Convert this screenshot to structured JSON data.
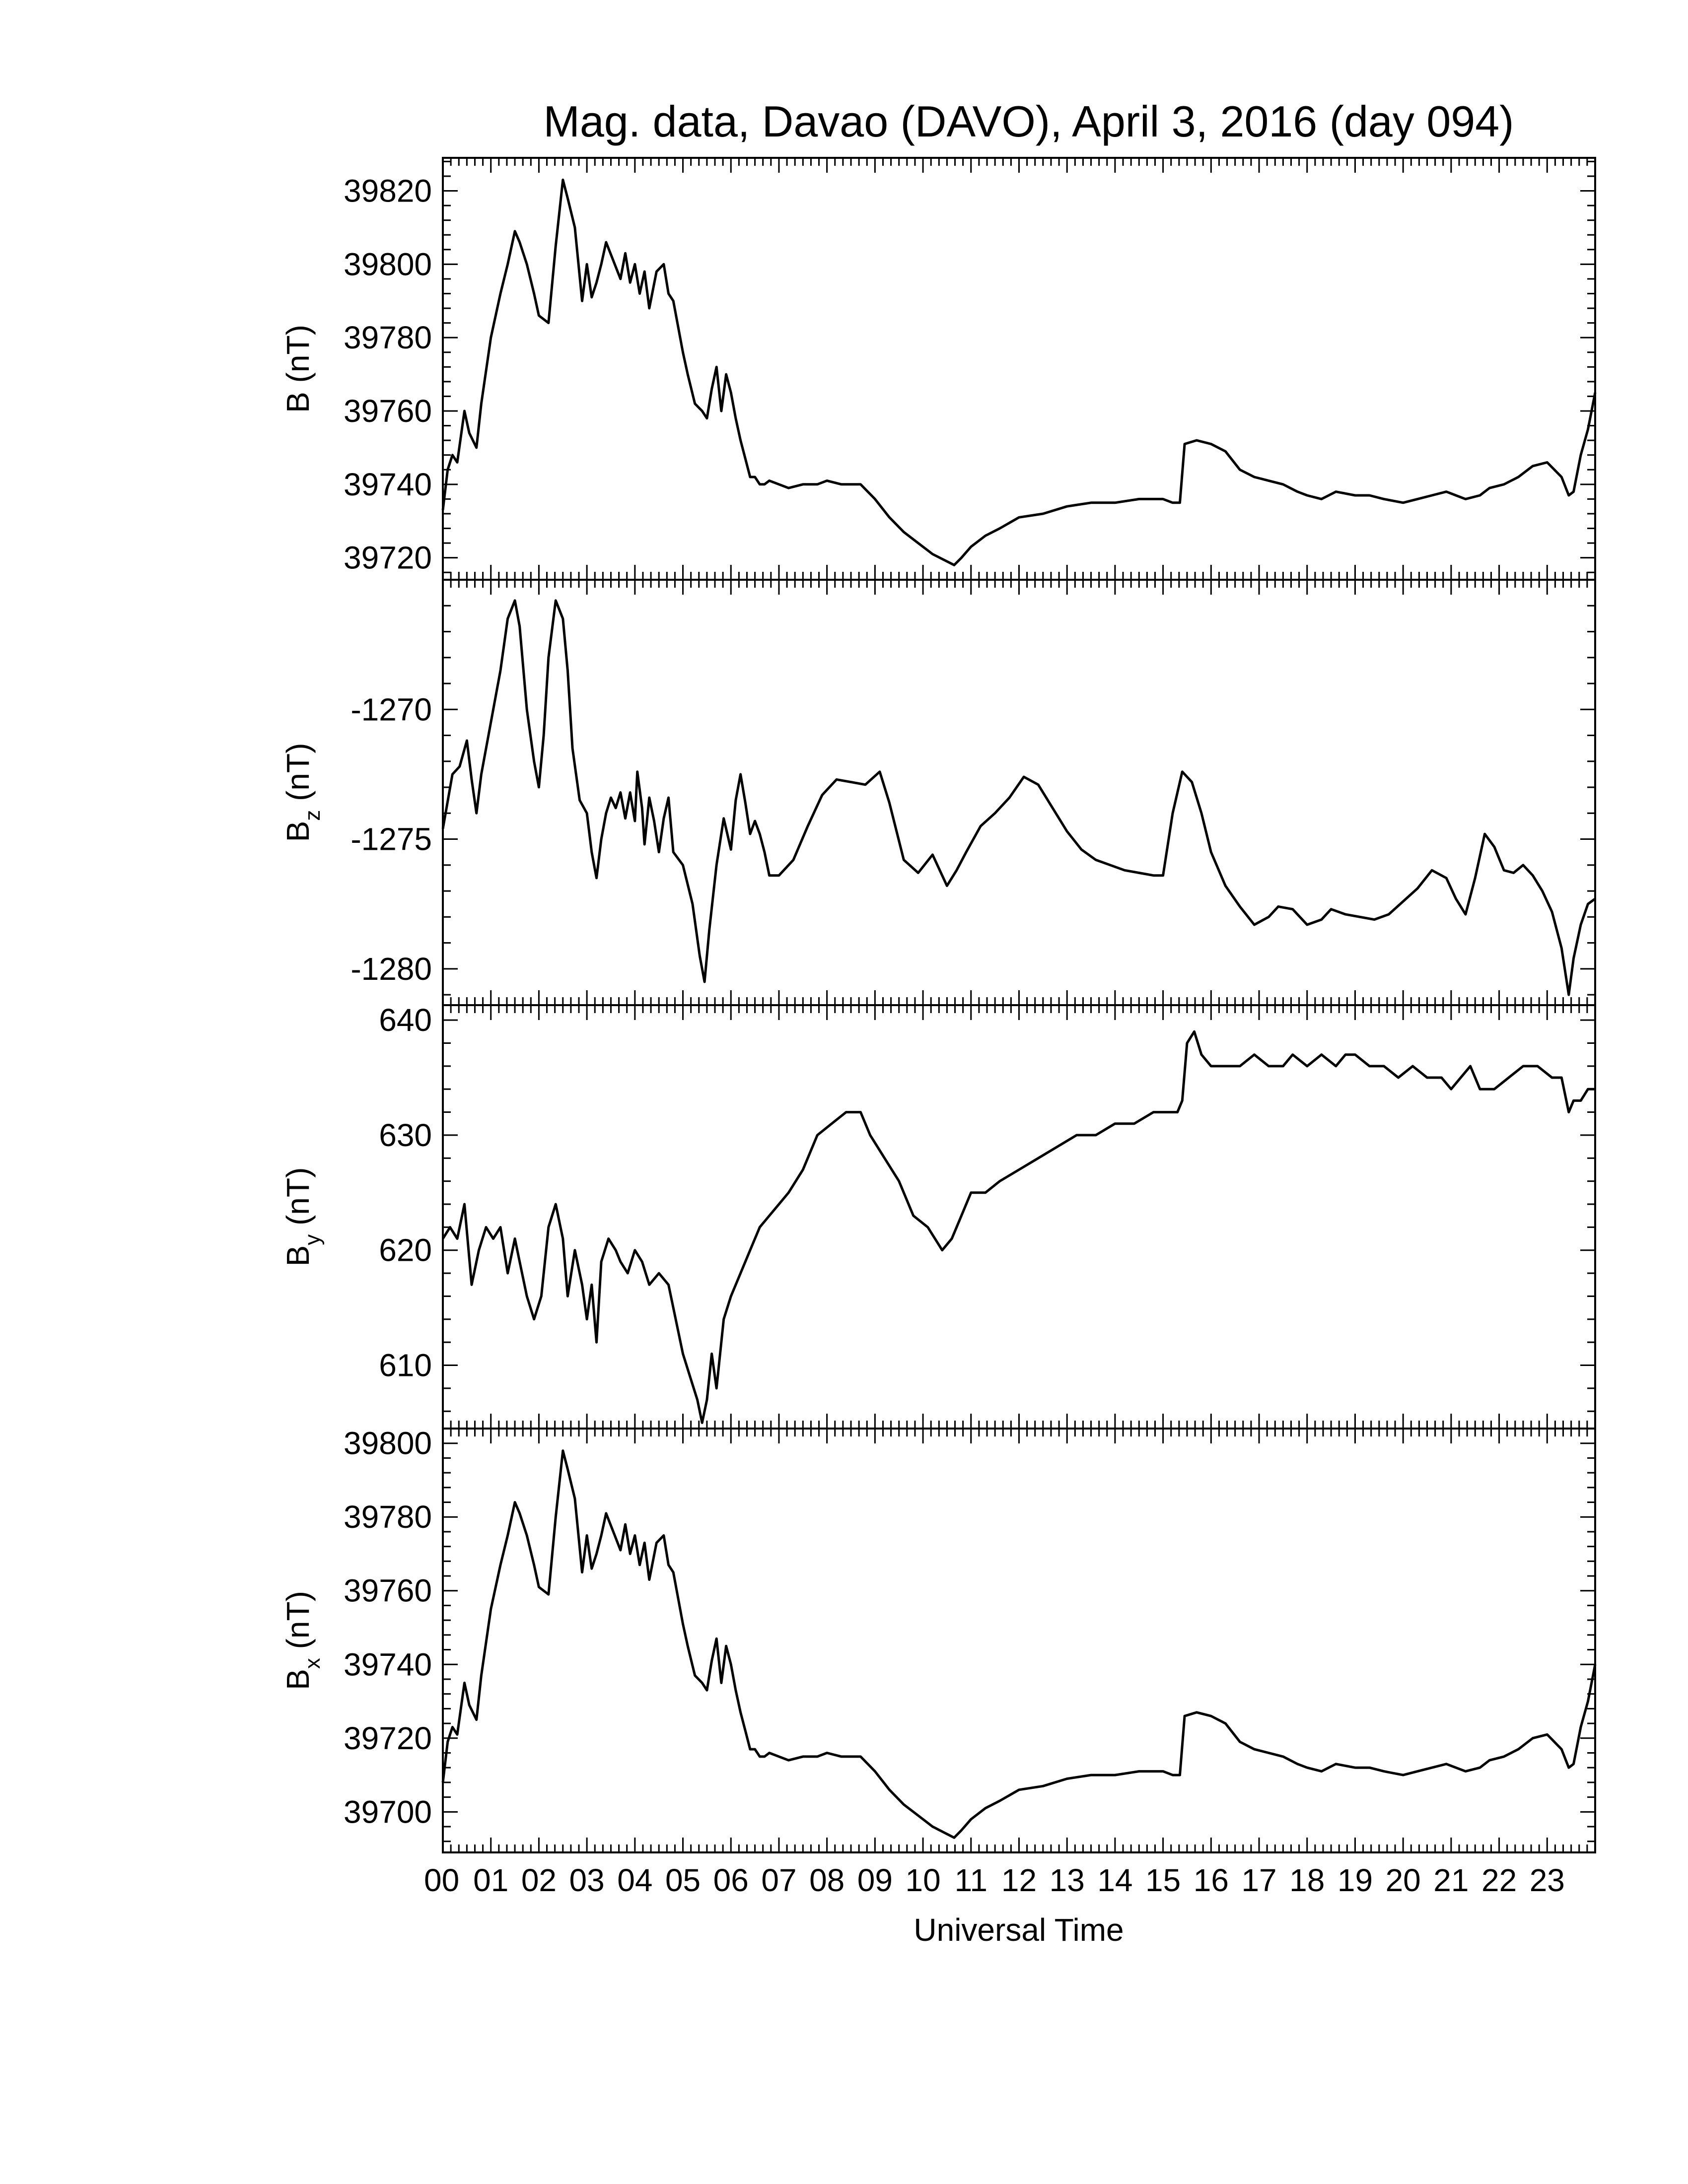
{
  "title": "Mag. data, Davao (DAVO), April 3, 2016 (day 094)",
  "xlabel": "Universal Time",
  "colors": {
    "line": "#000000",
    "frame": "#000000",
    "background": "#ffffff"
  },
  "chart_data": [
    {
      "type": "line",
      "panel": "B",
      "ylabel": "B (nT)",
      "ylim": [
        39714,
        39829
      ],
      "yticks": [
        39720,
        39740,
        39760,
        39780,
        39800,
        39820
      ],
      "ytick_labels": [
        "39720",
        "39740",
        "39760",
        "39780",
        "39800",
        "39820"
      ],
      "xlim": [
        0,
        24
      ],
      "series": [
        {
          "x": [
            0,
            0.1,
            0.2,
            0.3,
            0.45,
            0.55,
            0.7,
            0.8,
            1.0,
            1.2,
            1.35,
            1.5,
            1.6,
            1.75,
            1.9,
            2.0,
            2.2,
            2.35,
            2.5,
            2.6,
            2.75,
            2.9,
            3.0,
            3.1,
            3.2,
            3.3,
            3.4,
            3.55,
            3.7,
            3.8,
            3.9,
            4.0,
            4.1,
            4.2,
            4.3,
            4.45,
            4.6,
            4.7,
            4.8,
            5.0,
            5.1,
            5.25,
            5.4,
            5.5,
            5.6,
            5.7,
            5.8,
            5.9,
            6.0,
            6.1,
            6.2,
            6.3,
            6.4,
            6.5,
            6.6,
            6.7,
            6.8,
            7.0,
            7.2,
            7.5,
            7.8,
            8.0,
            8.3,
            8.7,
            9.0,
            9.3,
            9.6,
            9.9,
            10.2,
            10.5,
            10.65,
            10.8,
            11.0,
            11.3,
            11.6,
            12.0,
            12.5,
            13.0,
            13.5,
            14.0,
            14.5,
            15.0,
            15.2,
            15.35,
            15.45,
            15.7,
            16.0,
            16.3,
            16.6,
            16.9,
            17.2,
            17.5,
            17.8,
            18.0,
            18.3,
            18.6,
            19.0,
            19.3,
            19.6,
            20.0,
            20.3,
            20.6,
            20.9,
            21.1,
            21.3,
            21.6,
            21.8,
            22.1,
            22.4,
            22.7,
            23.0,
            23.3,
            23.45,
            23.55,
            23.7,
            23.85,
            24.0
          ],
          "values": [
            39733,
            39744,
            39748,
            39746,
            39760,
            39754,
            39750,
            39762,
            39780,
            39792,
            39800,
            39809,
            39806,
            39800,
            39792,
            39786,
            39784,
            39805,
            39823,
            39818,
            39810,
            39790,
            39800,
            39791,
            39795,
            39800,
            39806,
            39801,
            39796,
            39803,
            39795,
            39800,
            39792,
            39798,
            39788,
            39798,
            39800,
            39792,
            39790,
            39776,
            39770,
            39762,
            39760,
            39758,
            39766,
            39772,
            39760,
            39770,
            39765,
            39758,
            39752,
            39747,
            39742,
            39742,
            39740,
            39740,
            39741,
            39740,
            39739,
            39740,
            39740,
            39741,
            39740,
            39740,
            39736,
            39731,
            39727,
            39724,
            39721,
            39719,
            39718,
            39720,
            39723,
            39726,
            39728,
            39731,
            39732,
            39734,
            39735,
            39735,
            39736,
            39736,
            39735,
            39735,
            39751,
            39752,
            39751,
            39749,
            39744,
            39742,
            39741,
            39740,
            39738,
            39737,
            39736,
            39738,
            39737,
            39737,
            39736,
            39735,
            39736,
            39737,
            39738,
            39737,
            39736,
            39737,
            39739,
            39740,
            39742,
            39745,
            39746,
            39742,
            39737,
            39738,
            39748,
            39755,
            39765
          ]
        }
      ]
    },
    {
      "type": "line",
      "panel": "Bz",
      "ylabel": "Bz (nT)",
      "ylim": [
        -1281.4,
        -1265.0
      ],
      "yticks": [
        -1280,
        -1275,
        -1270
      ],
      "ytick_labels": [
        "-1280",
        "-1275",
        "-1270"
      ],
      "xlim": [
        0,
        24
      ],
      "series": [
        {
          "x": [
            0,
            0.2,
            0.35,
            0.5,
            0.6,
            0.7,
            0.8,
            1.0,
            1.2,
            1.35,
            1.5,
            1.6,
            1.75,
            1.9,
            2.0,
            2.1,
            2.2,
            2.35,
            2.5,
            2.6,
            2.7,
            2.85,
            3.0,
            3.1,
            3.2,
            3.3,
            3.4,
            3.5,
            3.6,
            3.7,
            3.8,
            3.9,
            4.0,
            4.05,
            4.15,
            4.2,
            4.3,
            4.4,
            4.5,
            4.6,
            4.7,
            4.8,
            5.0,
            5.2,
            5.35,
            5.45,
            5.55,
            5.7,
            5.85,
            6.0,
            6.1,
            6.2,
            6.3,
            6.4,
            6.5,
            6.6,
            6.7,
            6.8,
            7.0,
            7.3,
            7.6,
            7.9,
            8.2,
            8.5,
            8.8,
            9.1,
            9.3,
            9.6,
            9.9,
            10.2,
            10.5,
            10.7,
            10.9,
            11.2,
            11.5,
            11.8,
            12.1,
            12.4,
            12.7,
            13.0,
            13.3,
            13.6,
            13.9,
            14.2,
            14.5,
            14.8,
            15.0,
            15.2,
            15.4,
            15.6,
            15.8,
            16.0,
            16.3,
            16.6,
            16.9,
            17.2,
            17.4,
            17.7,
            18.0,
            18.3,
            18.5,
            18.8,
            19.1,
            19.4,
            19.7,
            20.0,
            20.3,
            20.6,
            20.9,
            21.1,
            21.3,
            21.5,
            21.7,
            21.9,
            22.1,
            22.3,
            22.5,
            22.7,
            22.9,
            23.1,
            23.3,
            23.45,
            23.55,
            23.7,
            23.85,
            24.0
          ],
          "values": [
            -1274.6,
            -1272.5,
            -1272.2,
            -1271.2,
            -1272.7,
            -1274.0,
            -1272.5,
            -1270.5,
            -1268.5,
            -1266.5,
            -1265.8,
            -1266.8,
            -1270.0,
            -1272.0,
            -1273.0,
            -1271.0,
            -1268.0,
            -1265.8,
            -1266.5,
            -1268.5,
            -1271.5,
            -1273.5,
            -1274.0,
            -1275.5,
            -1276.5,
            -1275.0,
            -1274.0,
            -1273.4,
            -1273.8,
            -1273.2,
            -1274.2,
            -1273.2,
            -1274.3,
            -1272.4,
            -1273.8,
            -1275.2,
            -1273.4,
            -1274.3,
            -1275.5,
            -1274.2,
            -1273.4,
            -1275.5,
            -1276.0,
            -1277.5,
            -1279.5,
            -1280.5,
            -1278.5,
            -1276.0,
            -1274.2,
            -1275.4,
            -1273.5,
            -1272.5,
            -1273.6,
            -1274.8,
            -1274.3,
            -1274.8,
            -1275.5,
            -1276.4,
            -1276.4,
            -1275.8,
            -1274.5,
            -1273.3,
            -1272.7,
            -1272.8,
            -1272.9,
            -1272.4,
            -1273.6,
            -1275.8,
            -1276.3,
            -1275.6,
            -1276.8,
            -1276.2,
            -1275.5,
            -1274.5,
            -1274.0,
            -1273.4,
            -1272.6,
            -1272.9,
            -1273.8,
            -1274.7,
            -1275.4,
            -1275.8,
            -1276.0,
            -1276.2,
            -1276.3,
            -1276.4,
            -1276.4,
            -1274.0,
            -1272.4,
            -1272.8,
            -1274.0,
            -1275.5,
            -1276.8,
            -1277.6,
            -1278.3,
            -1278.0,
            -1277.6,
            -1277.7,
            -1278.3,
            -1278.1,
            -1277.7,
            -1277.9,
            -1278.0,
            -1278.1,
            -1277.9,
            -1277.4,
            -1276.9,
            -1276.2,
            -1276.5,
            -1277.3,
            -1277.9,
            -1276.5,
            -1274.8,
            -1275.3,
            -1276.2,
            -1276.3,
            -1276.0,
            -1276.4,
            -1277.0,
            -1277.8,
            -1279.2,
            -1281.0,
            -1279.6,
            -1278.3,
            -1277.5,
            -1277.3
          ]
        }
      ]
    },
    {
      "type": "line",
      "panel": "By",
      "ylabel": "By (nT)",
      "ylim": [
        604.5,
        641.3
      ],
      "yticks": [
        610,
        620,
        630,
        640
      ],
      "ytick_labels": [
        "610",
        "620",
        "630",
        "640"
      ],
      "xlim": [
        0,
        24
      ],
      "series": [
        {
          "x": [
            0,
            0.15,
            0.3,
            0.45,
            0.6,
            0.75,
            0.9,
            1.05,
            1.2,
            1.35,
            1.5,
            1.6,
            1.75,
            1.9,
            2.05,
            2.2,
            2.35,
            2.5,
            2.6,
            2.75,
            2.9,
            3.0,
            3.1,
            3.2,
            3.3,
            3.45,
            3.6,
            3.7,
            3.85,
            4.0,
            4.15,
            4.3,
            4.5,
            4.7,
            4.85,
            5.0,
            5.15,
            5.3,
            5.4,
            5.5,
            5.6,
            5.7,
            5.85,
            6.0,
            6.2,
            6.4,
            6.6,
            6.8,
            7.0,
            7.2,
            7.5,
            7.8,
            8.1,
            8.4,
            8.7,
            8.9,
            9.2,
            9.5,
            9.8,
            10.1,
            10.4,
            10.6,
            10.8,
            11.0,
            11.3,
            11.6,
            12.0,
            12.4,
            12.8,
            13.2,
            13.6,
            14.0,
            14.4,
            14.8,
            15.1,
            15.3,
            15.4,
            15.5,
            15.65,
            15.8,
            16.0,
            16.3,
            16.6,
            16.9,
            17.2,
            17.5,
            17.7,
            18.0,
            18.3,
            18.6,
            18.8,
            19.0,
            19.3,
            19.6,
            19.9,
            20.2,
            20.5,
            20.8,
            21.0,
            21.2,
            21.4,
            21.6,
            21.9,
            22.2,
            22.5,
            22.8,
            23.1,
            23.3,
            23.45,
            23.55,
            23.7,
            23.85,
            24.0
          ],
          "values": [
            621,
            622,
            621,
            624,
            617,
            620,
            622,
            621,
            622,
            618,
            621,
            619,
            616,
            614,
            616,
            622,
            624,
            621,
            616,
            620,
            617,
            614,
            617,
            612,
            619,
            621,
            620,
            619,
            618,
            620,
            619,
            617,
            618,
            617,
            614,
            611,
            609,
            607,
            605,
            607,
            611,
            608,
            614,
            616,
            618,
            620,
            622,
            623,
            624,
            625,
            627,
            630,
            631,
            632,
            632,
            630,
            628,
            626,
            623,
            622,
            620,
            621,
            623,
            625,
            625,
            626,
            627,
            628,
            629,
            630,
            630,
            631,
            631,
            632,
            632,
            632,
            633,
            638,
            639,
            637,
            636,
            636,
            636,
            637,
            636,
            636,
            637,
            636,
            637,
            636,
            637,
            637,
            636,
            636,
            635,
            636,
            635,
            635,
            634,
            635,
            636,
            634,
            634,
            635,
            636,
            636,
            635,
            635,
            632,
            633,
            633,
            634,
            634
          ]
        }
      ]
    },
    {
      "type": "line",
      "panel": "Bx",
      "ylabel": "Bx (nT)",
      "ylim": [
        39689,
        39804
      ],
      "yticks": [
        39700,
        39720,
        39740,
        39760,
        39780,
        39800
      ],
      "ytick_labels": [
        "39700",
        "39720",
        "39740",
        "39760",
        "39780",
        "39800"
      ],
      "xlim": [
        0,
        24
      ],
      "series": [
        {
          "x": [
            0,
            0.1,
            0.2,
            0.3,
            0.45,
            0.55,
            0.7,
            0.8,
            1.0,
            1.2,
            1.35,
            1.5,
            1.6,
            1.75,
            1.9,
            2.0,
            2.2,
            2.35,
            2.5,
            2.6,
            2.75,
            2.9,
            3.0,
            3.1,
            3.2,
            3.3,
            3.4,
            3.55,
            3.7,
            3.8,
            3.9,
            4.0,
            4.1,
            4.2,
            4.3,
            4.45,
            4.6,
            4.7,
            4.8,
            5.0,
            5.1,
            5.25,
            5.4,
            5.5,
            5.6,
            5.7,
            5.8,
            5.9,
            6.0,
            6.1,
            6.2,
            6.3,
            6.4,
            6.5,
            6.6,
            6.7,
            6.8,
            7.0,
            7.2,
            7.5,
            7.8,
            8.0,
            8.3,
            8.7,
            9.0,
            9.3,
            9.6,
            9.9,
            10.2,
            10.5,
            10.65,
            10.8,
            11.0,
            11.3,
            11.6,
            12.0,
            12.5,
            13.0,
            13.5,
            14.0,
            14.5,
            15.0,
            15.2,
            15.35,
            15.45,
            15.7,
            16.0,
            16.3,
            16.6,
            16.9,
            17.2,
            17.5,
            17.8,
            18.0,
            18.3,
            18.6,
            19.0,
            19.3,
            19.6,
            20.0,
            20.3,
            20.6,
            20.9,
            21.1,
            21.3,
            21.6,
            21.8,
            22.1,
            22.4,
            22.7,
            23.0,
            23.3,
            23.45,
            23.55,
            23.7,
            23.85,
            24.0
          ],
          "values": [
            39708,
            39719,
            39723,
            39721,
            39735,
            39729,
            39725,
            39737,
            39755,
            39767,
            39775,
            39784,
            39781,
            39775,
            39767,
            39761,
            39759,
            39780,
            39798,
            39793,
            39785,
            39765,
            39775,
            39766,
            39770,
            39775,
            39781,
            39776,
            39771,
            39778,
            39770,
            39775,
            39767,
            39773,
            39763,
            39773,
            39775,
            39767,
            39765,
            39751,
            39745,
            39737,
            39735,
            39733,
            39741,
            39747,
            39735,
            39745,
            39740,
            39733,
            39727,
            39722,
            39717,
            39717,
            39715,
            39715,
            39716,
            39715,
            39714,
            39715,
            39715,
            39716,
            39715,
            39715,
            39711,
            39706,
            39702,
            39699,
            39696,
            39694,
            39693,
            39695,
            39698,
            39701,
            39703,
            39706,
            39707,
            39709,
            39710,
            39710,
            39711,
            39711,
            39710,
            39710,
            39726,
            39727,
            39726,
            39724,
            39719,
            39717,
            39716,
            39715,
            39713,
            39712,
            39711,
            39713,
            39712,
            39712,
            39711,
            39710,
            39711,
            39712,
            39713,
            39712,
            39711,
            39712,
            39714,
            39715,
            39717,
            39720,
            39721,
            39717,
            39712,
            39713,
            39723,
            39730,
            39740
          ]
        }
      ]
    }
  ],
  "xaxis": {
    "xlim": [
      0,
      24
    ],
    "tick_labels": [
      "00",
      "01",
      "02",
      "03",
      "04",
      "05",
      "06",
      "07",
      "08",
      "09",
      "10",
      "11",
      "12",
      "13",
      "14",
      "15",
      "16",
      "17",
      "18",
      "19",
      "20",
      "21",
      "22",
      "23"
    ]
  }
}
